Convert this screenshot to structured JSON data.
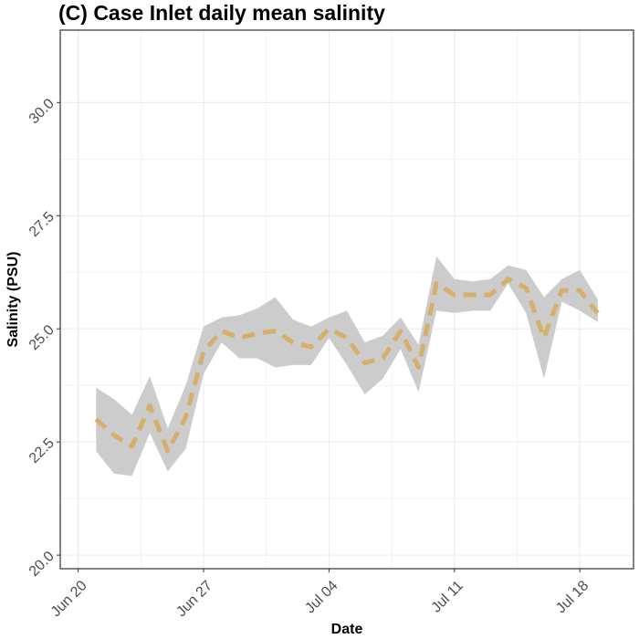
{
  "chart_data": {
    "type": "area",
    "title": "(C) Case Inlet daily mean salinity",
    "xlabel": "Date",
    "ylabel": "Salinity (PSU)",
    "x_tick_labels": [
      "Jun 20",
      "Jun 27",
      "Jul 04",
      "Jul 11",
      "Jul 18"
    ],
    "x_tick_dates": [
      "2021-06-20",
      "2021-06-27",
      "2021-07-04",
      "2021-07-11",
      "2021-07-18"
    ],
    "y_tick_labels": [
      "20.0",
      "22.5",
      "25.0",
      "27.5",
      "30.0"
    ],
    "y_ticks": [
      20.0,
      22.5,
      25.0,
      27.5,
      30.0
    ],
    "xlim": [
      "2021-06-19",
      "2021-07-21"
    ],
    "ylim": [
      19.7,
      31.6
    ],
    "grid": true,
    "legend": "none",
    "colors": {
      "mean_line": "#d4b06a",
      "range_band": "#cccccc",
      "grid": "#ebebeb",
      "frame": "#333333"
    },
    "series": [
      {
        "type": "range",
        "x": [
          "2021-06-21",
          "2021-06-22",
          "2021-06-23",
          "2021-06-24",
          "2021-06-25",
          "2021-06-26",
          "2021-06-27",
          "2021-06-28",
          "2021-06-29",
          "2021-06-30",
          "2021-07-01",
          "2021-07-02",
          "2021-07-03",
          "2021-07-04",
          "2021-07-05",
          "2021-07-06",
          "2021-07-07",
          "2021-07-08",
          "2021-07-09",
          "2021-07-10",
          "2021-07-11",
          "2021-07-12",
          "2021-07-13",
          "2021-07-14",
          "2021-07-15",
          "2021-07-16",
          "2021-07-17",
          "2021-07-18",
          "2021-07-19"
        ],
        "lower": [
          22.3,
          21.8,
          21.75,
          22.7,
          21.85,
          22.35,
          24.0,
          24.7,
          24.35,
          24.35,
          24.15,
          24.2,
          24.2,
          24.8,
          24.2,
          23.55,
          23.9,
          24.55,
          23.6,
          25.4,
          25.35,
          25.4,
          25.4,
          26.0,
          25.35,
          23.9,
          25.6,
          25.4,
          25.15
        ],
        "upper": [
          23.7,
          23.45,
          23.1,
          23.95,
          22.8,
          23.75,
          25.05,
          25.25,
          25.3,
          25.45,
          25.7,
          25.2,
          25.05,
          25.25,
          25.4,
          24.7,
          24.85,
          25.25,
          24.65,
          26.6,
          26.1,
          26.05,
          26.1,
          26.4,
          26.3,
          25.7,
          26.1,
          26.3,
          25.65
        ]
      },
      {
        "type": "line",
        "style": "dashed",
        "x": [
          "2021-06-21",
          "2021-06-22",
          "2021-06-23",
          "2021-06-24",
          "2021-06-25",
          "2021-06-26",
          "2021-06-27",
          "2021-06-28",
          "2021-06-29",
          "2021-06-30",
          "2021-07-01",
          "2021-07-02",
          "2021-07-03",
          "2021-07-04",
          "2021-07-05",
          "2021-07-06",
          "2021-07-07",
          "2021-07-08",
          "2021-07-09",
          "2021-07-10",
          "2021-07-11",
          "2021-07-12",
          "2021-07-13",
          "2021-07-14",
          "2021-07-15",
          "2021-07-16",
          "2021-07-17",
          "2021-07-18",
          "2021-07-19"
        ],
        "y": [
          23.0,
          22.65,
          22.4,
          23.3,
          22.3,
          23.05,
          24.5,
          24.95,
          24.8,
          24.9,
          24.95,
          24.7,
          24.6,
          25.0,
          24.8,
          24.25,
          24.35,
          24.95,
          24.15,
          26.0,
          25.75,
          25.75,
          25.75,
          26.1,
          25.9,
          24.8,
          25.85,
          25.85,
          25.35
        ]
      }
    ]
  }
}
